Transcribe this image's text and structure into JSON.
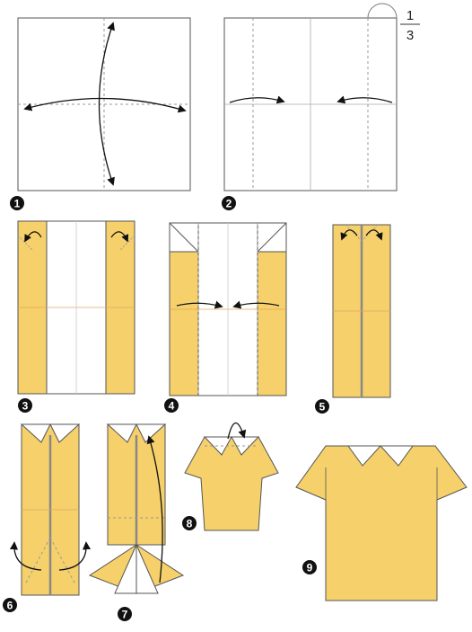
{
  "diagram": {
    "type": "origami-instructions",
    "subject": "shirt",
    "fraction": {
      "numerator": "1",
      "denominator": "3"
    },
    "steps": [
      {
        "number": "1",
        "action": "fold-and-unfold-both-diagonals-center"
      },
      {
        "number": "2",
        "action": "fold-sides-in-thirds"
      },
      {
        "number": "3",
        "action": "fold-top-corners-down"
      },
      {
        "number": "4",
        "action": "fold-sides-to-center"
      },
      {
        "number": "5",
        "action": "fold-top-corners-out"
      },
      {
        "number": "6",
        "action": "fold-bottom-flaps-out"
      },
      {
        "number": "7",
        "action": "fold-bottom-up"
      },
      {
        "number": "8",
        "action": "fold-collar-back"
      },
      {
        "number": "9",
        "action": "completed-shirt"
      }
    ]
  },
  "colors": {
    "paper_front": "#F5D06B",
    "paper_back": "#FFFFFF",
    "outline": "#555555",
    "crease": "#999999",
    "badge": "#111111",
    "arrow": "#111111"
  }
}
